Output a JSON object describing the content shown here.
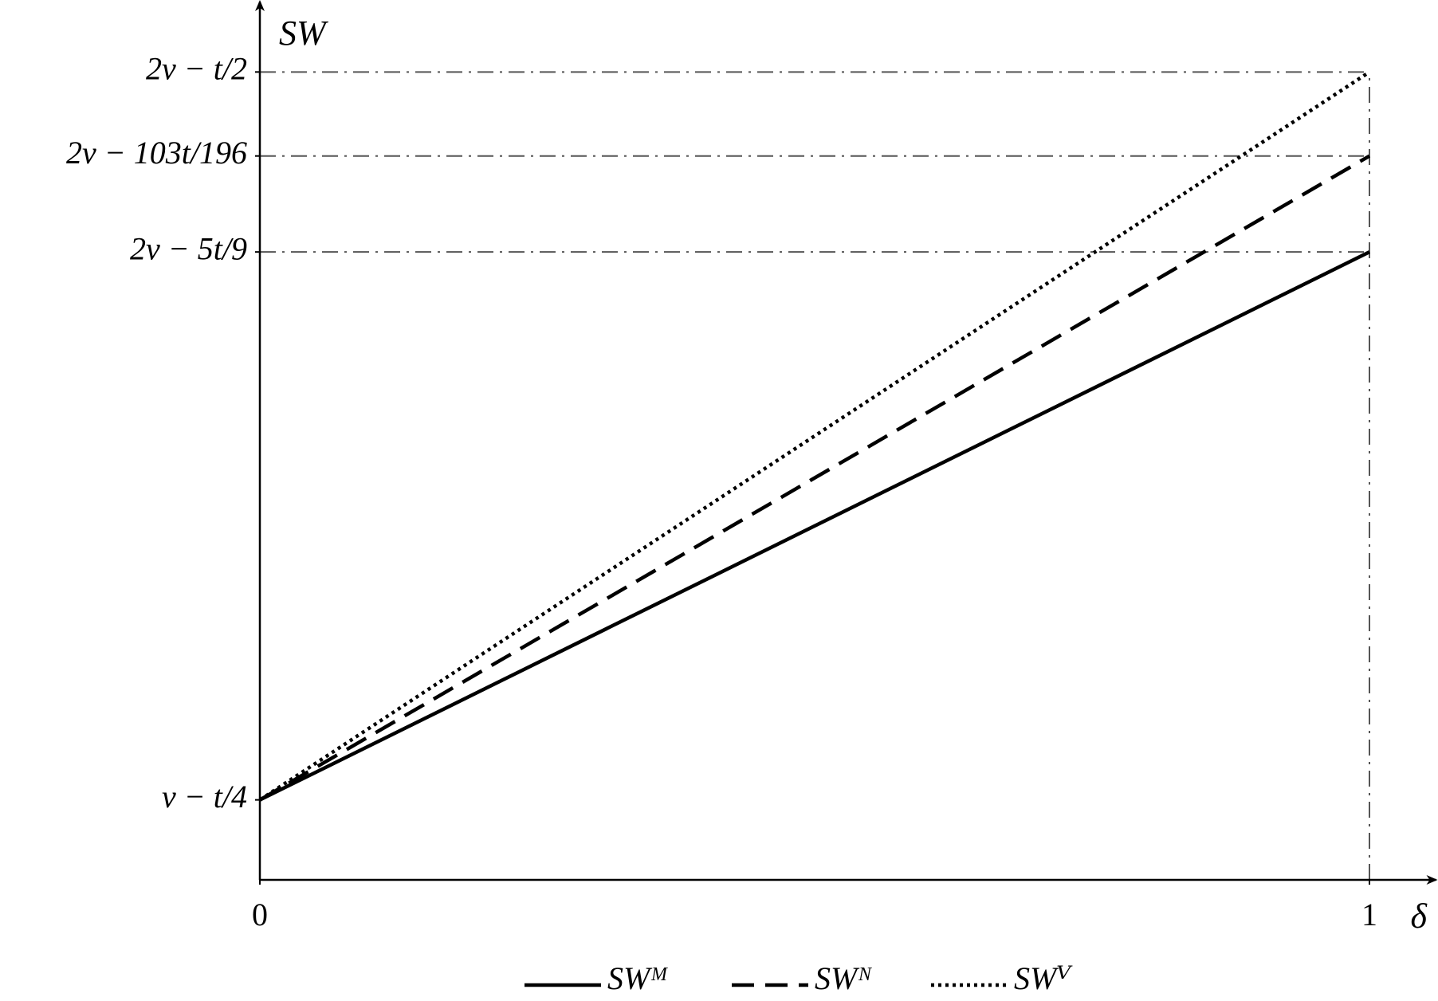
{
  "chart_data": {
    "type": "line",
    "y_label": "SW",
    "x_label": "δ",
    "x": [
      0,
      1
    ],
    "series": [
      {
        "name": "SWᴹ",
        "color": "#000000",
        "style": "solid",
        "values": [
          1,
          7.85
        ]
      },
      {
        "name": "SWᴺ",
        "color": "#000000",
        "style": "dashed",
        "values": [
          1,
          9.05
        ]
      },
      {
        "name": "SWⱽ",
        "color": "#000000",
        "style": "dotted",
        "values": [
          1,
          10.1
        ]
      }
    ],
    "xlim": [
      0,
      1.06
    ],
    "ylim": [
      0,
      11
    ],
    "xticks": [
      0,
      1
    ],
    "yticks": [
      {
        "value": 1,
        "label": "v − t/4"
      },
      {
        "value": 7.85,
        "label": "2v − 5t/9"
      },
      {
        "value": 9.05,
        "label": "2v − 103t/196"
      },
      {
        "value": 10.1,
        "label": "2v − t/2"
      }
    ],
    "legend": "bottom"
  }
}
